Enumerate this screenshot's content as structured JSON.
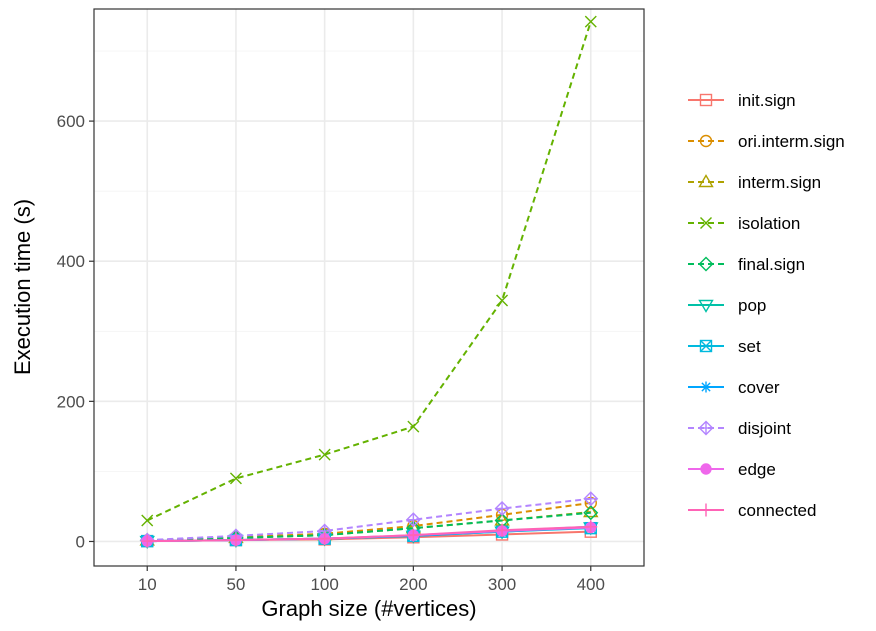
{
  "chart_data": {
    "type": "line",
    "xlabel": "Graph size (#vertices)",
    "ylabel": "Execution time (s)",
    "categories": [
      "10",
      "50",
      "100",
      "200",
      "300",
      "400"
    ],
    "ylim": [
      -35,
      760
    ],
    "yticks": [
      0,
      200,
      400,
      600
    ],
    "grid": true,
    "legend_position": "right",
    "series": [
      {
        "name": "init.sign",
        "color": "#F8766D",
        "marker": "square-open",
        "dash": "solid",
        "values": [
          0.5,
          2,
          3,
          6,
          10,
          14
        ]
      },
      {
        "name": "ori.interm.sign",
        "color": "#DB8E00",
        "marker": "circle-open",
        "dash": "dashed",
        "values": [
          1.5,
          6,
          11,
          22,
          38,
          55
        ]
      },
      {
        "name": "interm.sign",
        "color": "#AEA200",
        "marker": "triangle-up-open",
        "dash": "dashed",
        "values": [
          1.5,
          5,
          9,
          19,
          30,
          42
        ]
      },
      {
        "name": "isolation",
        "color": "#64B200",
        "marker": "x",
        "dash": "dashed",
        "values": [
          30,
          90,
          124,
          164,
          344,
          742
        ]
      },
      {
        "name": "final.sign",
        "color": "#00BD5C",
        "marker": "diamond-open",
        "dash": "dashed",
        "values": [
          1.5,
          5,
          9,
          19,
          30,
          41
        ]
      },
      {
        "name": "pop",
        "color": "#00C1A7",
        "marker": "triangle-down-open",
        "dash": "solid",
        "values": [
          0.5,
          2,
          4,
          8,
          14,
          20
        ]
      },
      {
        "name": "set",
        "color": "#00BADE",
        "marker": "square-x",
        "dash": "solid",
        "values": [
          0.5,
          2,
          4,
          8,
          14,
          19
        ]
      },
      {
        "name": "cover",
        "color": "#00A6FF",
        "marker": "asterisk",
        "dash": "solid",
        "values": [
          0.5,
          2,
          4,
          8,
          15,
          21
        ]
      },
      {
        "name": "disjoint",
        "color": "#B385FF",
        "marker": "diamond-plus",
        "dash": "dashed",
        "values": [
          2,
          8,
          15,
          31,
          47,
          61
        ]
      },
      {
        "name": "edge",
        "color": "#EF67EB",
        "marker": "circle-filled",
        "dash": "solid",
        "values": [
          0.5,
          2,
          4,
          9,
          15,
          20
        ]
      },
      {
        "name": "connected",
        "color": "#FF63B6",
        "marker": "plus",
        "dash": "solid",
        "values": [
          0.5,
          2,
          4,
          9,
          16,
          21
        ]
      }
    ]
  }
}
